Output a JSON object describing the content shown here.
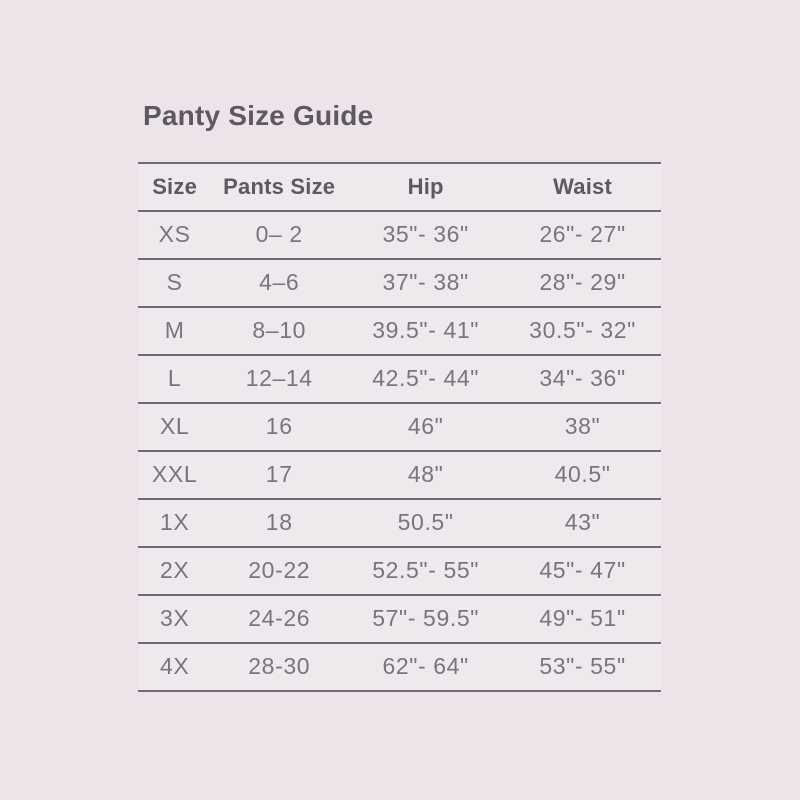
{
  "title": "Panty Size Guide",
  "colors": {
    "background": "#ece4e9",
    "title_text": "#5d5862",
    "header_text": "#5d5862",
    "body_text": "#7a747f",
    "rule_lines": "#6f6a75"
  },
  "table": {
    "columns": [
      "Size",
      "Pants Size",
      "Hip",
      "Waist"
    ],
    "rows": [
      [
        "XS",
        "0– 2",
        "35\"- 36\"",
        "26\"- 27\""
      ],
      [
        "S",
        "4–6",
        "37\"- 38\"",
        "28\"- 29\""
      ],
      [
        "M",
        "8–10",
        "39.5\"- 41\"",
        "30.5\"- 32\""
      ],
      [
        "L",
        "12–14",
        "42.5\"- 44\"",
        "34\"- 36\""
      ],
      [
        "XL",
        "16",
        "46\"",
        "38\""
      ],
      [
        "XXL",
        "17",
        "48\"",
        "40.5\""
      ],
      [
        "1X",
        "18",
        "50.5\"",
        "43\""
      ],
      [
        "2X",
        "20-22",
        "52.5\"- 55\"",
        "45\"- 47\""
      ],
      [
        "3X",
        "24-26",
        "57\"- 59.5\"",
        "49\"- 51\""
      ],
      [
        "4X",
        "28-30",
        "62\"- 64\"",
        "53\"- 55\""
      ]
    ]
  }
}
